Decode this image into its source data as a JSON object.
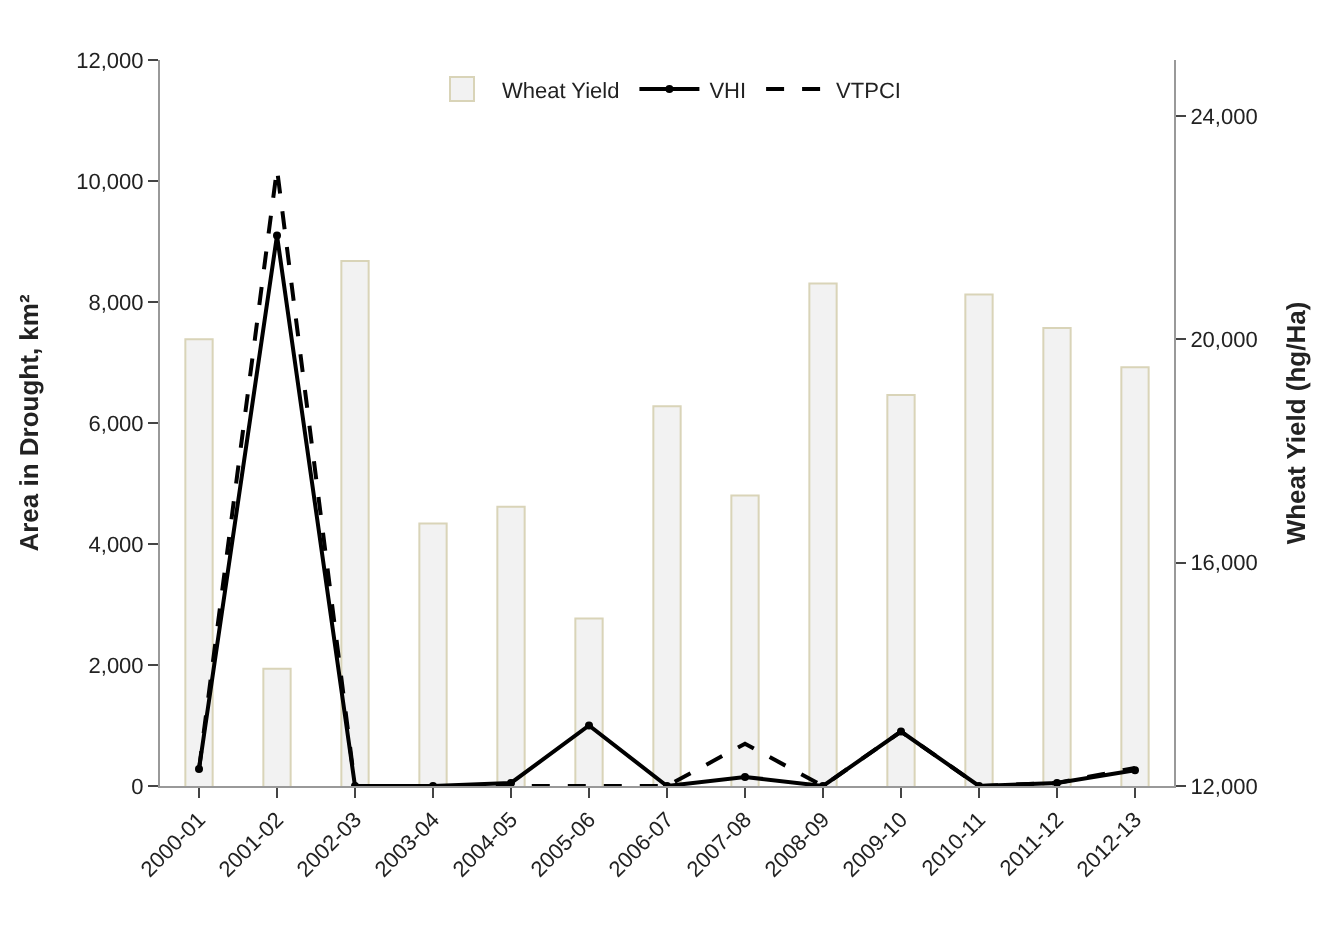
{
  "chart_data": {
    "type": "line",
    "ylabel": "Area in Drought, km²",
    "y2label": "Wheat Yield (hg/Ha)",
    "categories": [
      "2000-01",
      "2001-02",
      "2002-03",
      "2003-04",
      "2004-05",
      "2005-06",
      "2006-07",
      "2007-08",
      "2008-09",
      "2009-10",
      "2010-11",
      "2011-12",
      "2012-13"
    ],
    "series": [
      {
        "name": "Wheat Yield",
        "type": "bar",
        "axis": "y2",
        "color": "#f2f2f2",
        "values": [
          20000,
          14100,
          21400,
          16700,
          17000,
          15000,
          18800,
          17200,
          21000,
          19000,
          20800,
          20200,
          19500
        ]
      },
      {
        "name": "VHI",
        "color": "#000000",
        "marker": "circle",
        "line_style": "solid",
        "values": [
          280,
          9100,
          0,
          0,
          50,
          1000,
          0,
          150,
          0,
          900,
          0,
          50,
          260
        ]
      },
      {
        "name": "VTPCI",
        "color": "#000000",
        "marker": "none",
        "line_style": "dashed",
        "values": [
          280,
          10200,
          0,
          0,
          0,
          0,
          0,
          700,
          0,
          900,
          0,
          50,
          300
        ]
      }
    ],
    "ylim": [
      0,
      12000
    ],
    "yticks": [
      {
        "value": 0,
        "label": "0"
      },
      {
        "value": 2000,
        "label": "2,000"
      },
      {
        "value": 4000,
        "label": "4,000"
      },
      {
        "value": 6000,
        "label": "6,000"
      },
      {
        "value": 8000,
        "label": "8,000"
      },
      {
        "value": 10000,
        "label": "10,000"
      },
      {
        "value": 12000,
        "label": "12,000"
      }
    ],
    "y2lim": [
      12000,
      25000
    ],
    "y2ticks": [
      {
        "value": 12000,
        "label": "12,000"
      },
      {
        "value": 16000,
        "label": "16,000"
      },
      {
        "value": 20000,
        "label": "20,000"
      },
      {
        "value": 24000,
        "label": "24,000"
      }
    ],
    "legend": "top"
  }
}
